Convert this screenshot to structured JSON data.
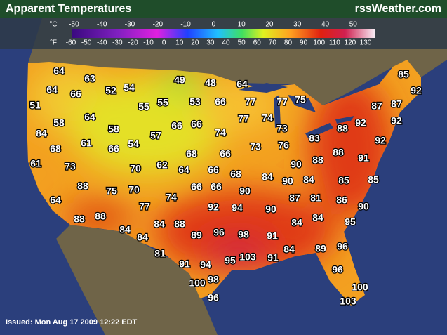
{
  "header": {
    "title": "Apparent Temperatures",
    "site": "rssWeather.com"
  },
  "legend": {
    "celsius_unit": "°C",
    "fahrenheit_unit": "°F",
    "celsius_ticks": [
      -50,
      -40,
      -30,
      -20,
      -10,
      0,
      10,
      20,
      30,
      40,
      50
    ],
    "fahrenheit_ticks": [
      -60,
      -50,
      -40,
      -30,
      -20,
      -10,
      0,
      10,
      20,
      30,
      40,
      50,
      60,
      70,
      80,
      90,
      100,
      110,
      120,
      130
    ]
  },
  "readings": [
    64,
    63,
    64,
    66,
    52,
    54,
    49,
    48,
    64,
    85,
    92,
    51,
    64,
    55,
    55,
    53,
    66,
    77,
    77,
    75,
    87,
    87,
    58,
    61,
    58,
    57,
    66,
    66,
    74,
    77,
    74,
    73,
    92,
    92,
    84,
    68,
    66,
    54,
    68,
    66,
    73,
    76,
    83,
    88,
    92,
    61,
    73,
    70,
    62,
    64,
    66,
    68,
    84,
    90,
    88,
    88,
    91,
    88,
    75,
    70,
    74,
    66,
    66,
    90,
    90,
    84,
    85,
    85,
    64,
    88,
    88,
    77,
    87,
    81,
    86,
    90,
    92,
    94,
    90,
    84,
    84,
    88,
    89,
    96,
    98,
    84,
    84,
    95,
    84,
    91,
    81,
    84,
    89,
    96,
    91,
    94,
    95,
    103,
    91,
    96,
    100,
    98,
    100,
    96,
    103
  ],
  "footer": {
    "issued": "Issued: Mon Aug 17 2009 12:22 EDT"
  }
}
